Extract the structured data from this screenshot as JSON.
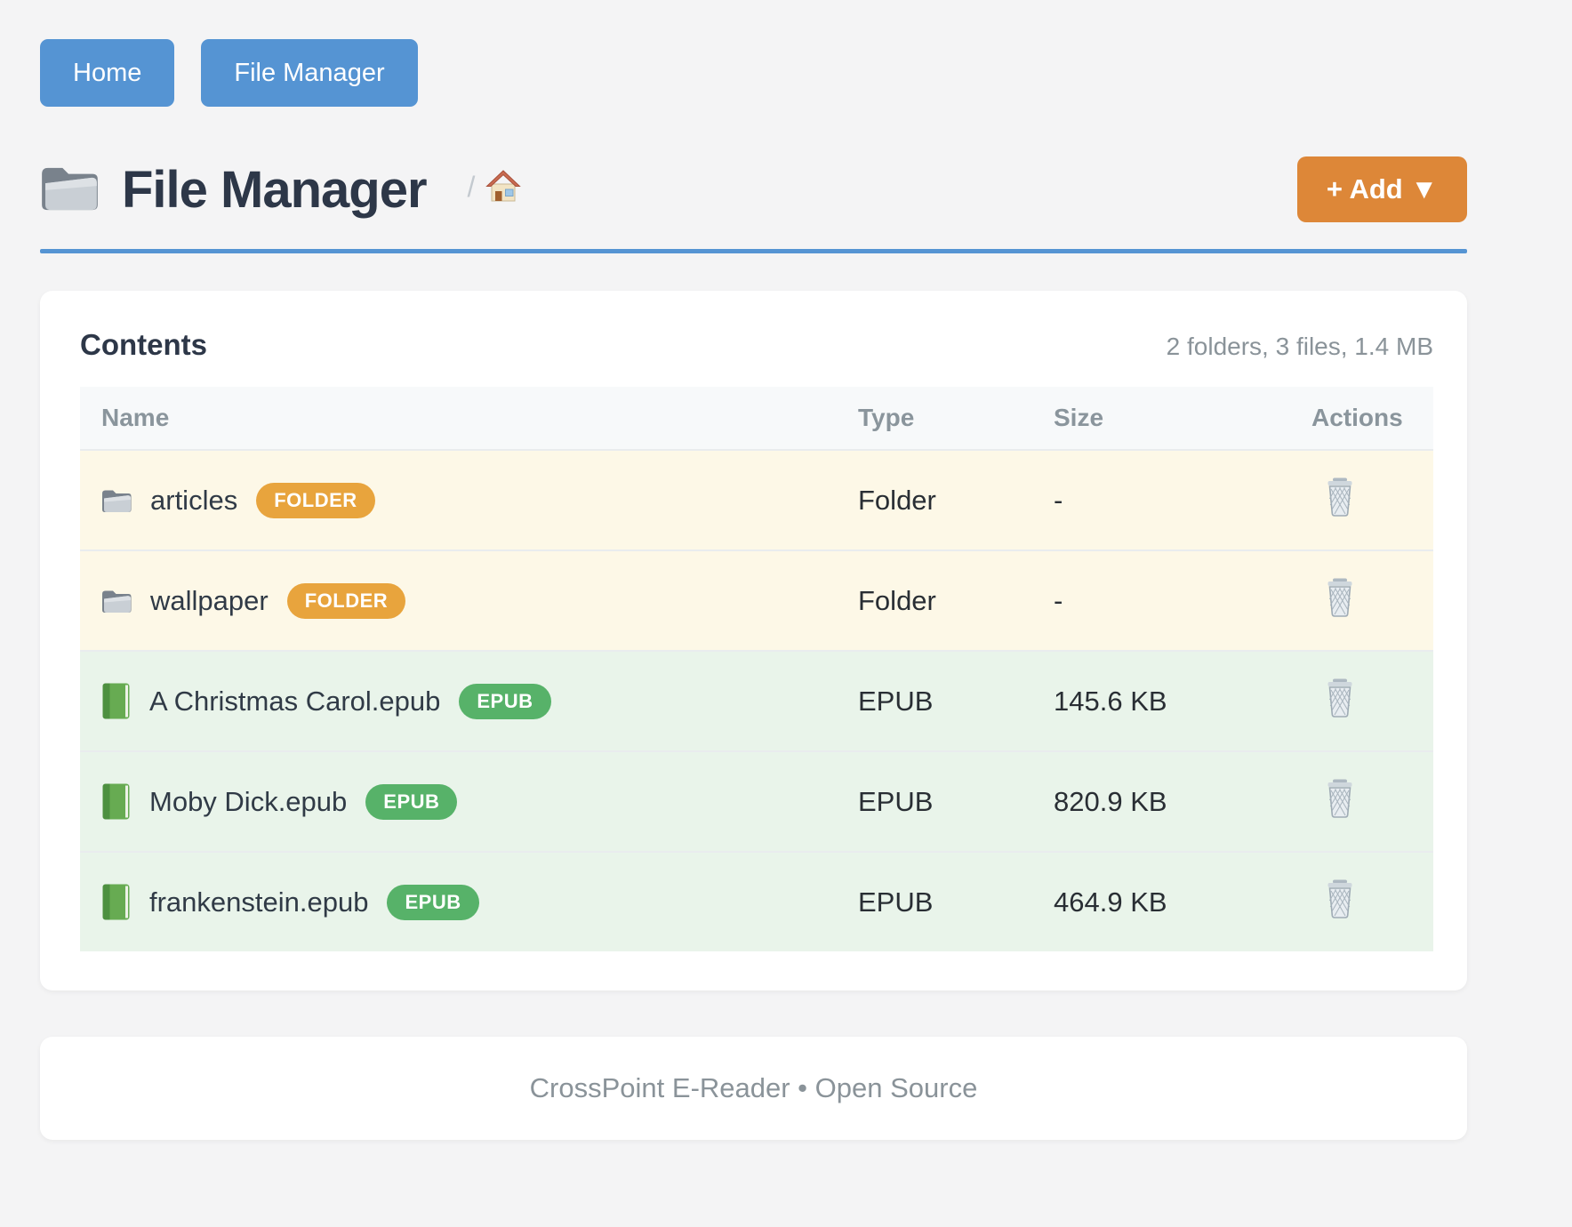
{
  "nav": {
    "home_label": "Home",
    "file_manager_label": "File Manager"
  },
  "header": {
    "title": "File Manager",
    "breadcrumb_separator": "/",
    "add_button_label": "+ Add ▼"
  },
  "contents": {
    "title": "Contents",
    "summary": "2 folders, 3 files, 1.4 MB",
    "columns": {
      "name": "Name",
      "type": "Type",
      "size": "Size",
      "actions": "Actions"
    },
    "rows": [
      {
        "name": "articles",
        "badge": "FOLDER",
        "type": "Folder",
        "size": "-",
        "kind": "folder"
      },
      {
        "name": "wallpaper",
        "badge": "FOLDER",
        "type": "Folder",
        "size": "-",
        "kind": "folder"
      },
      {
        "name": "A Christmas Carol.epub",
        "badge": "EPUB",
        "type": "EPUB",
        "size": "145.6 KB",
        "kind": "epub"
      },
      {
        "name": "Moby Dick.epub",
        "badge": "EPUB",
        "type": "EPUB",
        "size": "820.9 KB",
        "kind": "epub"
      },
      {
        "name": "frankenstein.epub",
        "badge": "EPUB",
        "type": "EPUB",
        "size": "464.9 KB",
        "kind": "epub"
      }
    ]
  },
  "footer": {
    "text": "CrossPoint E-Reader • Open Source"
  },
  "colors": {
    "primary_blue": "#5594d3",
    "accent_orange": "#dd8738",
    "badge_orange": "#e8a43d",
    "badge_green": "#57b269",
    "folder_row_bg": "#fdf8e7",
    "epub_row_bg": "#e9f4ea",
    "page_bg": "#f4f4f5"
  }
}
